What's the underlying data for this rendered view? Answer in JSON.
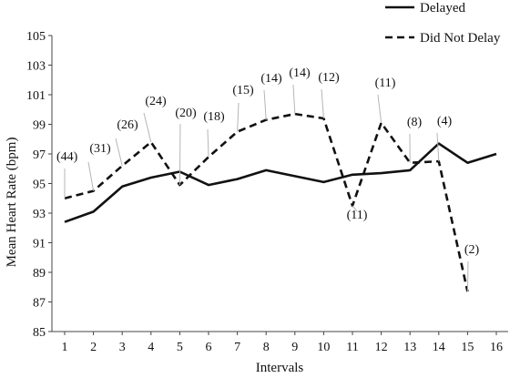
{
  "chart_data": {
    "type": "line",
    "title": "",
    "xlabel": "Intervals",
    "ylabel": "Mean Heart Rate (bpm)",
    "x": [
      1,
      2,
      3,
      4,
      5,
      6,
      7,
      8,
      9,
      10,
      11,
      12,
      13,
      14,
      15,
      16
    ],
    "xlim": [
      1,
      16
    ],
    "ylim": [
      85,
      105
    ],
    "yticks": [
      85,
      87,
      89,
      91,
      93,
      95,
      97,
      99,
      101,
      103,
      105
    ],
    "grid": false,
    "legend_position": "top-right",
    "series": [
      {
        "name": "Delayed",
        "style": "solid",
        "color": "#111111",
        "x": [
          1,
          2,
          3,
          4,
          5,
          6,
          7,
          8,
          9,
          10,
          11,
          12,
          13,
          14,
          15,
          16
        ],
        "values": [
          92.4,
          93.1,
          94.8,
          95.4,
          95.8,
          94.9,
          95.3,
          95.9,
          95.5,
          95.1,
          95.6,
          95.7,
          95.9,
          97.7,
          96.4,
          97.0
        ]
      },
      {
        "name": "Did Not Delay",
        "style": "dashed",
        "color": "#111111",
        "x": [
          1,
          2,
          3,
          4,
          5,
          6,
          7,
          8,
          9,
          10,
          11,
          12,
          13,
          14,
          15
        ],
        "values": [
          94.0,
          94.5,
          96.2,
          97.8,
          94.9,
          96.8,
          98.5,
          99.3,
          99.7,
          99.4,
          93.5,
          99.1,
          96.4,
          96.5,
          87.7
        ]
      }
    ],
    "annotations": [
      {
        "text": "(44)",
        "x": 1,
        "y": 94.0
      },
      {
        "text": "(31)",
        "x": 2,
        "y": 94.5
      },
      {
        "text": "(26)",
        "x": 3,
        "y": 96.2
      },
      {
        "text": "(24)",
        "x": 4,
        "y": 97.8
      },
      {
        "text": "(20)",
        "x": 5,
        "y": 94.9
      },
      {
        "text": "(18)",
        "x": 6,
        "y": 96.8
      },
      {
        "text": "(15)",
        "x": 7,
        "y": 98.5
      },
      {
        "text": "(14)",
        "x": 8,
        "y": 99.3
      },
      {
        "text": "(14)",
        "x": 9,
        "y": 99.7
      },
      {
        "text": "(12)",
        "x": 10,
        "y": 99.4
      },
      {
        "text": "(11)",
        "x": 11,
        "y": 93.5
      },
      {
        "text": "(11)",
        "x": 12,
        "y": 99.1
      },
      {
        "text": "(8)",
        "x": 13,
        "y": 96.4
      },
      {
        "text": "(4)",
        "x": 14,
        "y": 96.5
      },
      {
        "text": "(2)",
        "x": 15,
        "y": 87.7
      }
    ]
  }
}
